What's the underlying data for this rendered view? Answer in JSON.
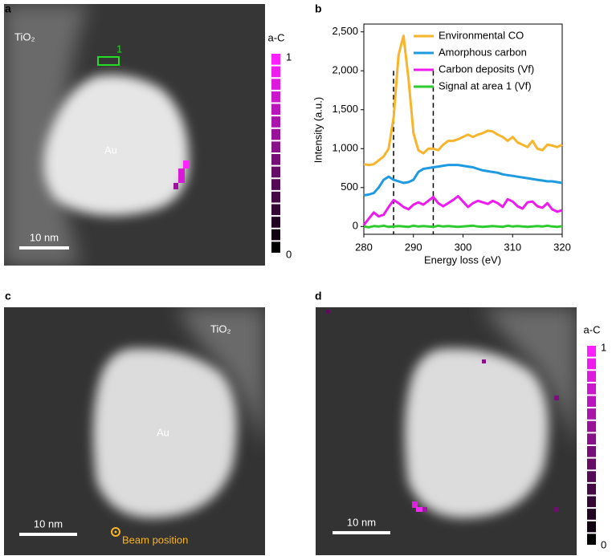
{
  "panel_labels": [
    "a",
    "b",
    "c",
    "d"
  ],
  "panel_a": {
    "label_support": "TiO₂",
    "label_particle": "Au",
    "area_label": "1",
    "scale_bar": "10 nm",
    "colorbar": {
      "title": "a-C",
      "max_label": "1",
      "min_label": "0"
    }
  },
  "chart_data": {
    "type": "line",
    "xlabel": "Energy loss (eV)",
    "ylabel": "Intensity (a.u.)",
    "x": [
      280,
      281,
      282,
      283,
      284,
      285,
      286,
      287,
      288,
      289,
      290,
      291,
      292,
      293,
      294,
      295,
      296,
      297,
      298,
      299,
      300,
      301,
      302,
      303,
      304,
      305,
      306,
      307,
      308,
      309,
      310,
      311,
      312,
      313,
      314,
      315,
      316,
      317,
      318,
      319,
      320
    ],
    "series": [
      {
        "name": "Environmental CO",
        "color": "#f8b42a",
        "values": [
          800,
          790,
          800,
          850,
          900,
          1000,
          1400,
          2200,
          2450,
          1900,
          1200,
          980,
          940,
          1000,
          1000,
          980,
          1050,
          1100,
          1100,
          1120,
          1150,
          1180,
          1150,
          1180,
          1200,
          1230,
          1220,
          1180,
          1150,
          1100,
          1150,
          1080,
          1050,
          1020,
          1100,
          1000,
          980,
          1050,
          1040,
          1020,
          1050
        ]
      },
      {
        "name": "Amorphous carbon",
        "color": "#1e9be0",
        "values": [
          400,
          410,
          430,
          500,
          600,
          640,
          600,
          580,
          560,
          570,
          600,
          700,
          740,
          750,
          760,
          770,
          780,
          790,
          790,
          790,
          780,
          770,
          760,
          740,
          720,
          710,
          700,
          690,
          670,
          660,
          650,
          640,
          630,
          620,
          610,
          600,
          590,
          580,
          580,
          570,
          560
        ]
      },
      {
        "name": "Carbon deposits (Vf)",
        "color": "#ee1bee",
        "values": [
          20,
          100,
          180,
          130,
          150,
          250,
          340,
          300,
          250,
          220,
          280,
          310,
          280,
          330,
          380,
          300,
          260,
          300,
          340,
          390,
          320,
          250,
          300,
          330,
          310,
          290,
          330,
          300,
          250,
          350,
          320,
          260,
          230,
          310,
          320,
          260,
          240,
          300,
          220,
          190,
          210
        ]
      },
      {
        "name": "Signal at area 1 (Vf)",
        "color": "#2ecb2e",
        "values": [
          0,
          -10,
          5,
          0,
          10,
          -5,
          0,
          5,
          0,
          -5,
          10,
          0,
          5,
          0,
          -5,
          10,
          0,
          5,
          0,
          -5,
          0,
          5,
          10,
          0,
          -5,
          0,
          5,
          0,
          -5,
          10,
          0,
          5,
          0,
          -5,
          0,
          5,
          0,
          10,
          0,
          -5,
          5
        ]
      }
    ],
    "vlines": [
      286,
      294
    ],
    "xlim": [
      280,
      320
    ],
    "xticks": [
      280,
      290,
      300,
      310,
      320
    ],
    "ylim": [
      -100,
      2600
    ],
    "yticks": [
      0,
      500,
      {
        "value": 1000,
        "label": "1,000"
      },
      {
        "value": 1500,
        "label": "1,500"
      },
      {
        "value": 2000,
        "label": "2,000"
      },
      {
        "value": 2500,
        "label": "2,500"
      }
    ],
    "legend": "upper right"
  },
  "panel_c": {
    "label_support": "TiO₂",
    "label_particle": "Au",
    "scale_bar": "10 nm",
    "beam_label": "Beam position"
  },
  "panel_d": {
    "scale_bar": "10 nm",
    "colorbar": {
      "title": "a-C",
      "max_label": "1",
      "min_label": "0"
    }
  }
}
